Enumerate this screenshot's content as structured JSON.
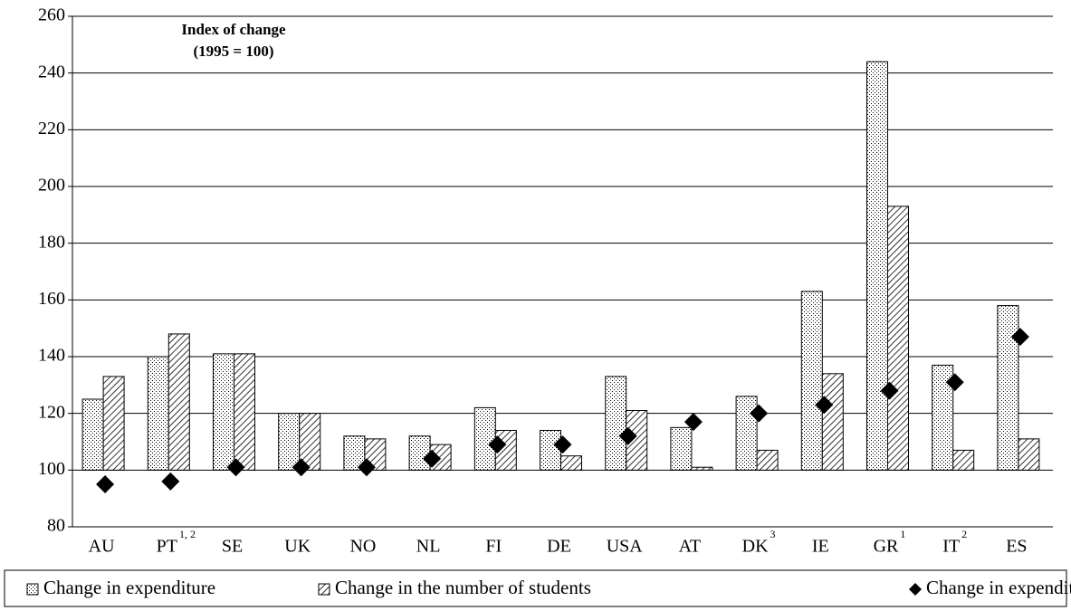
{
  "chart_data": {
    "type": "bar",
    "annotation": [
      "Index of change",
      "(1995 = 100)"
    ],
    "categories": [
      "AU",
      "PT",
      "SE",
      "UK",
      "NO",
      "NL",
      "FI",
      "DE",
      "USA",
      "AT",
      "DK",
      "IE",
      "GR",
      "IT",
      "ES"
    ],
    "category_notes": [
      null,
      "1, 2",
      null,
      null,
      null,
      null,
      null,
      null,
      null,
      null,
      "3",
      null,
      "1",
      "2",
      null
    ],
    "bar_base": 100,
    "series": [
      {
        "name": "Change in expenditure",
        "kind": "bar",
        "pattern": "dots",
        "color": "#000000",
        "values": [
          125,
          140,
          141,
          120,
          112,
          112,
          122,
          114,
          133,
          115,
          126,
          163,
          244,
          137,
          158
        ]
      },
      {
        "name": "Change in the number of students",
        "kind": "bar",
        "pattern": "hatch",
        "color": "#000000",
        "values": [
          133,
          148,
          141,
          120,
          111,
          109,
          114,
          105,
          121,
          101,
          107,
          134,
          193,
          107,
          111
        ]
      },
      {
        "name": "Change in expenditure per student",
        "kind": "marker",
        "marker": "diamond",
        "color": "#000000",
        "values": [
          95,
          96,
          101,
          101,
          101,
          104,
          109,
          109,
          112,
          117,
          120,
          123,
          128,
          131,
          147
        ]
      }
    ],
    "ylim": [
      80,
      260
    ],
    "yticks": [
      80,
      100,
      120,
      140,
      160,
      180,
      200,
      220,
      240,
      260
    ],
    "grid": true,
    "legend": "bottom"
  }
}
